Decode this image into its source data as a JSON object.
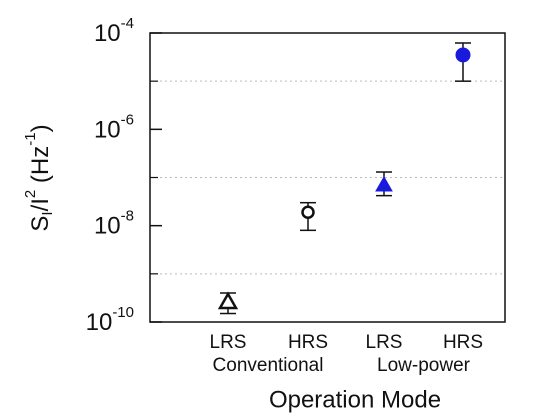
{
  "chart_data": {
    "type": "scatter",
    "categories": [
      "LRS",
      "HRS",
      "LRS",
      "HRS"
    ],
    "category_colors": [
      "#111111",
      "#111111",
      "#1a1adc",
      "#1a1adc"
    ],
    "groups": [
      {
        "label": "Conventional",
        "color": "#111111"
      },
      {
        "label": "Low-power",
        "color": "#1a1adc"
      }
    ],
    "markers": [
      "triangle-open",
      "circle-open",
      "triangle",
      "circle"
    ],
    "colors": [
      "#111111",
      "#111111",
      "#1a1adc",
      "#1a1adc"
    ],
    "values": [
      2.6e-10,
      1.9e-08,
      7e-08,
      3.5e-05
    ],
    "lower": [
      1.5e-10,
      8e-09,
      4.2e-08,
      1e-05
    ],
    "upper": [
      4e-10,
      3e-08,
      1.3e-07,
      6.2e-05
    ],
    "ylim": [
      1e-10,
      0.0001
    ],
    "log_y": true,
    "yticks": [
      {
        "value": 1e-10,
        "label": "10",
        "exponent": "-10"
      },
      {
        "value": 1e-08,
        "label": "10",
        "exponent": "-8"
      },
      {
        "value": 1e-06,
        "label": "10",
        "exponent": "-6"
      },
      {
        "value": 0.0001,
        "label": "10",
        "exponent": "-4"
      }
    ],
    "minor_yticks": [
      1e-09,
      1e-07,
      1e-05
    ],
    "grid": true,
    "ylabel": [
      {
        "text": "S"
      },
      {
        "text": "I",
        "shift": "sub"
      },
      {
        "text": "/I"
      },
      {
        "text": "2",
        "shift": "super"
      },
      {
        "text": " (Hz"
      },
      {
        "text": "-1",
        "shift": "super"
      },
      {
        "text": ")"
      }
    ],
    "xlabel": "Operation Mode"
  }
}
